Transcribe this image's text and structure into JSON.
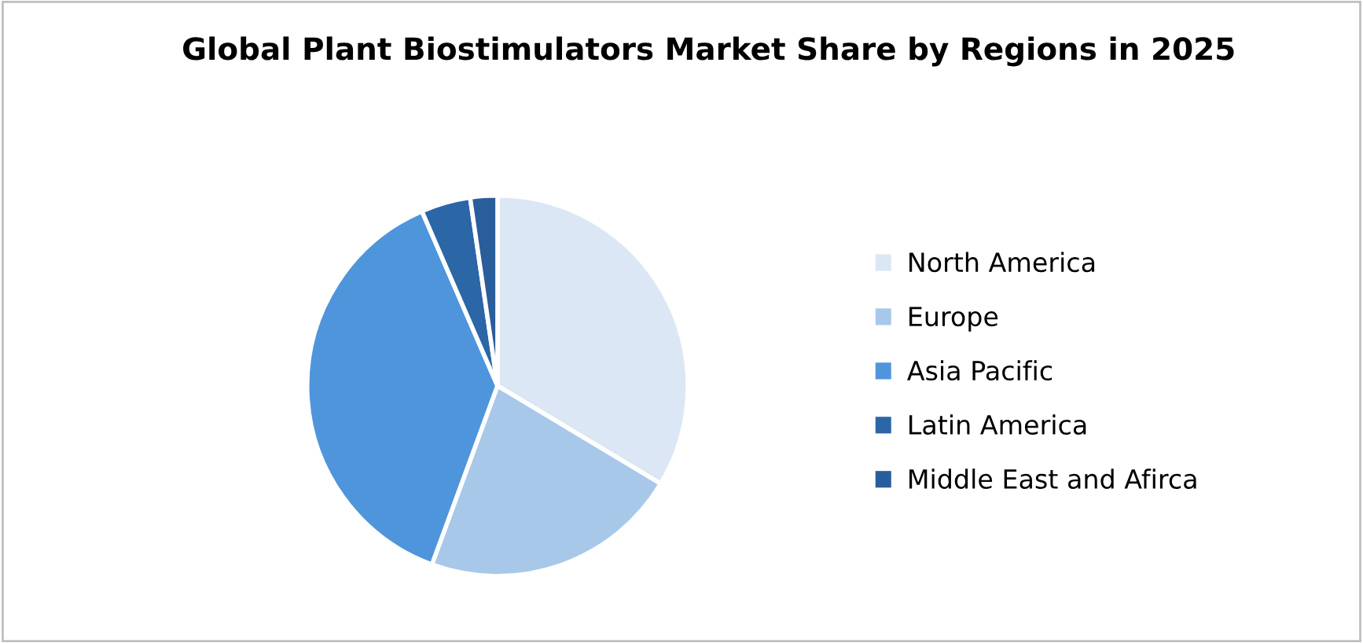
{
  "chart_data": {
    "type": "pie",
    "title": "Global Plant Biostimulators Market Share by Regions in 2025",
    "categories": [
      "North America",
      "Europe",
      "Asia Pacific",
      "Latin America",
      "Middle East and Afirca"
    ],
    "values": [
      33.6,
      22.0,
      37.9,
      4.2,
      2.3
    ],
    "colors": [
      "#dce7f5",
      "#a8c8ea",
      "#4f95dc",
      "#2b66a6",
      "#2a5d9c"
    ],
    "legend": "right"
  }
}
